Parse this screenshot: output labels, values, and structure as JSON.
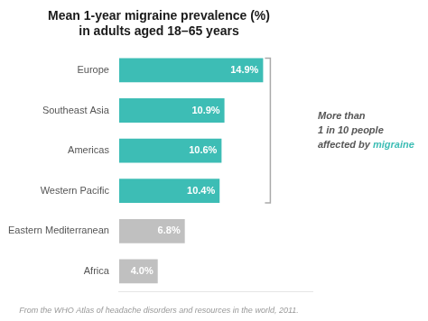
{
  "chart_data": {
    "type": "bar",
    "orientation": "horizontal",
    "title": "Mean 1-year migraine prevalence (%)",
    "subtitle": "in adults aged 18–65 years",
    "categories": [
      "Europe",
      "Southeast Asia",
      "Americas",
      "Western Pacific",
      "Eastern Mediterranean",
      "Africa"
    ],
    "values": [
      14.9,
      10.9,
      10.6,
      10.4,
      6.8,
      4.0
    ],
    "value_labels": [
      "14.9%",
      "10.9%",
      "10.6%",
      "10.4%",
      "6.8%",
      "4.0%"
    ],
    "colors": [
      "#3dbdb5",
      "#3dbdb5",
      "#3dbdb5",
      "#3dbdb5",
      "#c0c0c0",
      "#c0c0c0"
    ],
    "xlim": [
      0,
      20
    ],
    "grid": false,
    "data_labels": true,
    "tick_labels": "y",
    "annotations": [
      "More than",
      "1 in 10 people",
      "affected by migraine"
    ],
    "footnote": "From the WHO Atlas of headache disorders and resources in the world, 2011."
  }
}
